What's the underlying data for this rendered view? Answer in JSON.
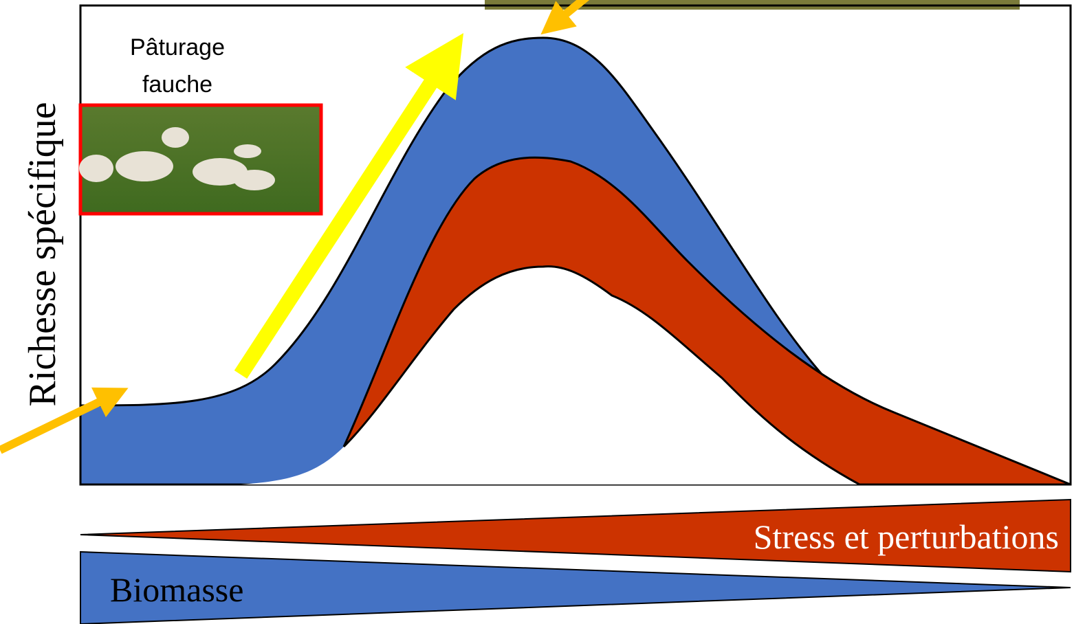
{
  "y_axis_label": "Richesse spécifique",
  "inset": {
    "lines": [
      "Pâturage",
      "fauche"
    ]
  },
  "gradients": {
    "stress": "Stress et perturbations",
    "biomass": "Biomasse"
  }
}
